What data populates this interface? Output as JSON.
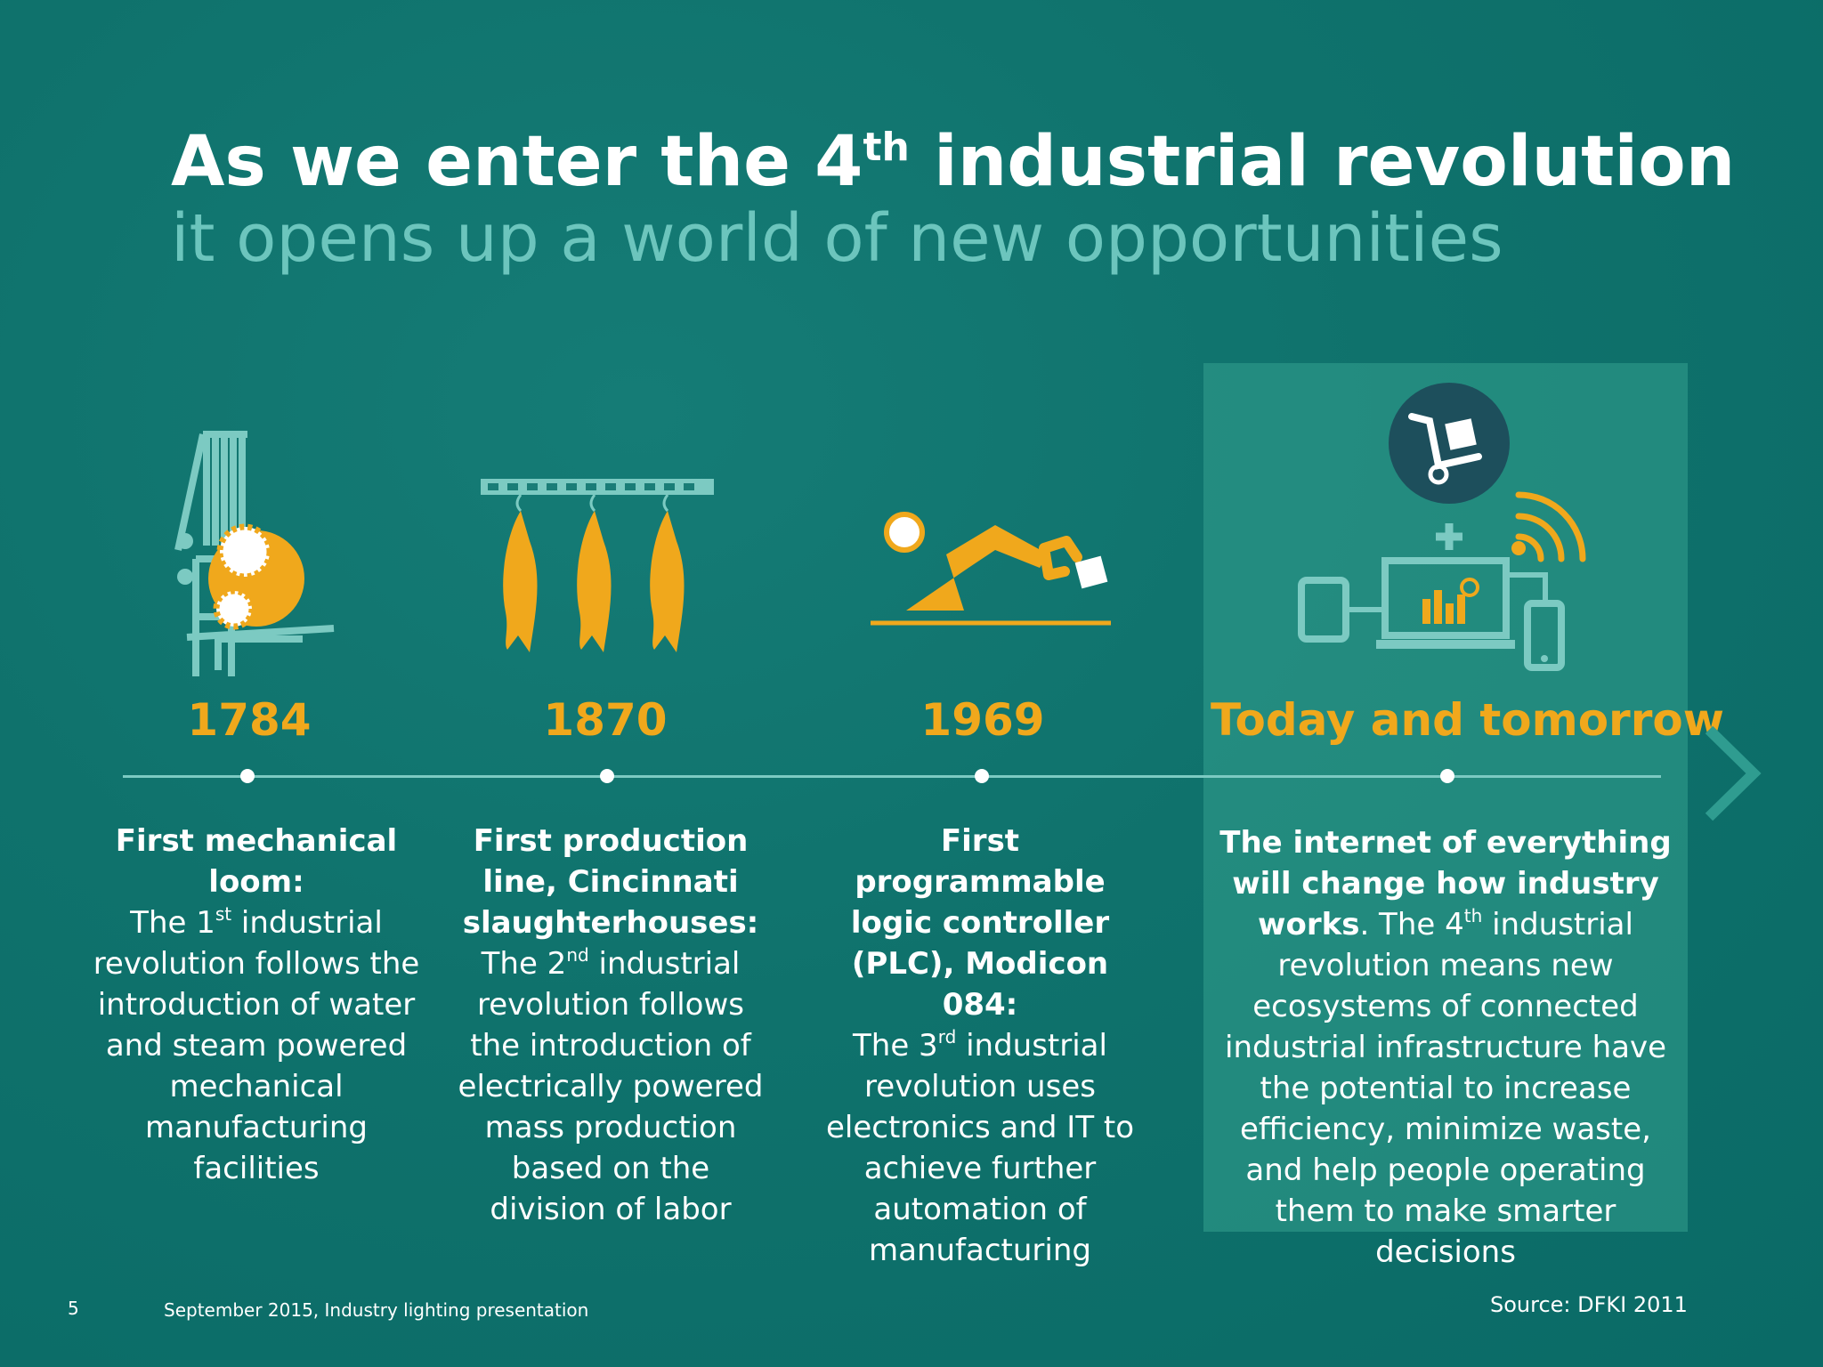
{
  "slide": {
    "title_pre": "As we enter the 4",
    "title_sup": "th",
    "title_post": " industrial revolution",
    "subtitle": "it opens up a world of new opportunities"
  },
  "timeline": [
    {
      "year": "1784",
      "heading": "First mechanical loom:",
      "body_pre": "The 1",
      "body_sup": "st",
      "body_post": " industrial revolution follows the introduction of water and steam powered mechanical manufacturing facilities"
    },
    {
      "year": "1870",
      "heading": "First production line, Cincinnati slaughterhouses:",
      "body_pre": "The 2",
      "body_sup": "nd",
      "body_post": " industrial revolution follows the introduction of electrically powered mass production based on the division of labor"
    },
    {
      "year": "1969",
      "heading": "First programmable logic controller (PLC), Modicon 084:",
      "body_pre": "The 3",
      "body_sup": "rd",
      "body_post": " industrial revolution uses electronics and IT to achieve further automation of manufacturing"
    },
    {
      "year": "Today and tomorrow",
      "heading": "The internet of everything will change how industry works",
      "body_lead": ". The 4",
      "body_sup": "th",
      "body_post": " industrial revolution means new ecosystems of connected industrial infrastructure have the potential to increase efficiency, minimize waste, and help people operating them to make smarter decisions"
    }
  ],
  "footer": {
    "page_number": "5",
    "date_label": "September 2015, Industry lighting presentation",
    "source": "Source: DFKI 2011"
  },
  "colors": {
    "accent": "#f0a81c",
    "icon_line": "#7ccac2",
    "subtitle": "#6cc5bd"
  },
  "icons": [
    "loom-icon",
    "production-line-icon",
    "robot-arm-icon",
    "connected-devices-icon",
    "next-arrow-icon"
  ]
}
